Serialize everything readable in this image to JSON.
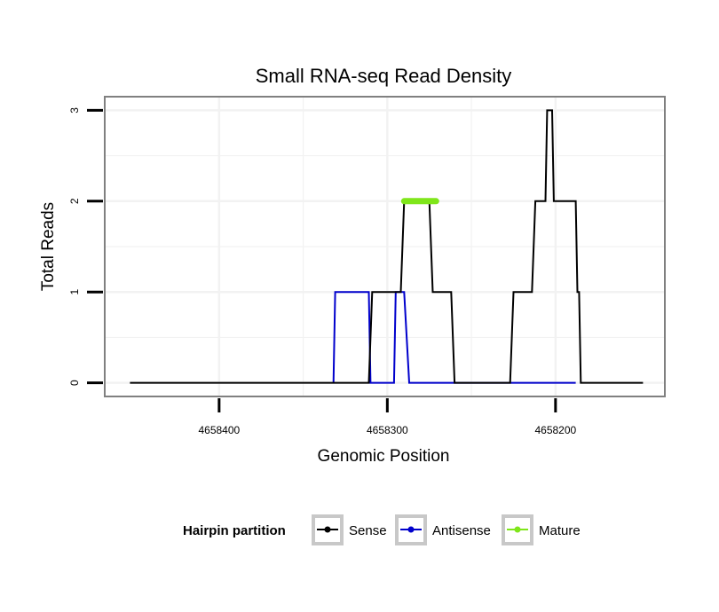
{
  "chart_data": {
    "type": "line",
    "title": "Small RNA-seq Read Density",
    "xlabel": "Genomic Position",
    "ylabel": "Total Reads",
    "x_reversed": true,
    "xlim": [
      4658468,
      4658135
    ],
    "ylim": [
      -0.15,
      3.15
    ],
    "xticks": [
      4658400,
      4658300,
      4658200
    ],
    "xtick_labels": [
      "4658400",
      "4658300",
      "4658200"
    ],
    "yticks": [
      0,
      1,
      2,
      3
    ],
    "ytick_labels": [
      "0",
      "1",
      "2",
      "3"
    ],
    "grid": true,
    "legend_position": "bottom",
    "legend_title": "Hairpin partition",
    "colors": {
      "sense": "#000000",
      "antisense": "#0000cc",
      "mature": "#7fe61a"
    },
    "series": [
      {
        "name": "Sense",
        "color": "#000000",
        "points": [
          [
            4658453,
            0
          ],
          [
            4658311,
            0
          ],
          [
            4658309,
            1
          ],
          [
            4658292,
            1
          ],
          [
            4658290,
            2
          ],
          [
            4658275,
            2
          ],
          [
            4658273,
            1
          ],
          [
            4658262,
            1
          ],
          [
            4658260,
            0
          ],
          [
            4658227,
            0
          ],
          [
            4658225,
            1
          ],
          [
            4658214,
            1
          ],
          [
            4658212,
            2
          ],
          [
            4658206,
            2
          ],
          [
            4658205,
            3
          ],
          [
            4658202,
            3
          ],
          [
            4658201,
            2
          ],
          [
            4658188,
            2
          ],
          [
            4658187,
            1
          ],
          [
            4658186,
            1
          ],
          [
            4658185,
            0
          ],
          [
            4658148,
            0
          ]
        ]
      },
      {
        "name": "Antisense",
        "color": "#0000cc",
        "points": [
          [
            4658332,
            0
          ],
          [
            4658331,
            1
          ],
          [
            4658311,
            1
          ],
          [
            4658310,
            0
          ],
          [
            4658296,
            0
          ],
          [
            4658295,
            1
          ],
          [
            4658291,
            1
          ],
          [
            4658290,
            1
          ],
          [
            4658287,
            0
          ],
          [
            4658252,
            0
          ],
          [
            4658188,
            0
          ]
        ]
      },
      {
        "name": "Mature",
        "color": "#7fe61a",
        "points": [
          [
            4658290,
            2
          ],
          [
            4658271,
            2
          ]
        ]
      }
    ]
  }
}
